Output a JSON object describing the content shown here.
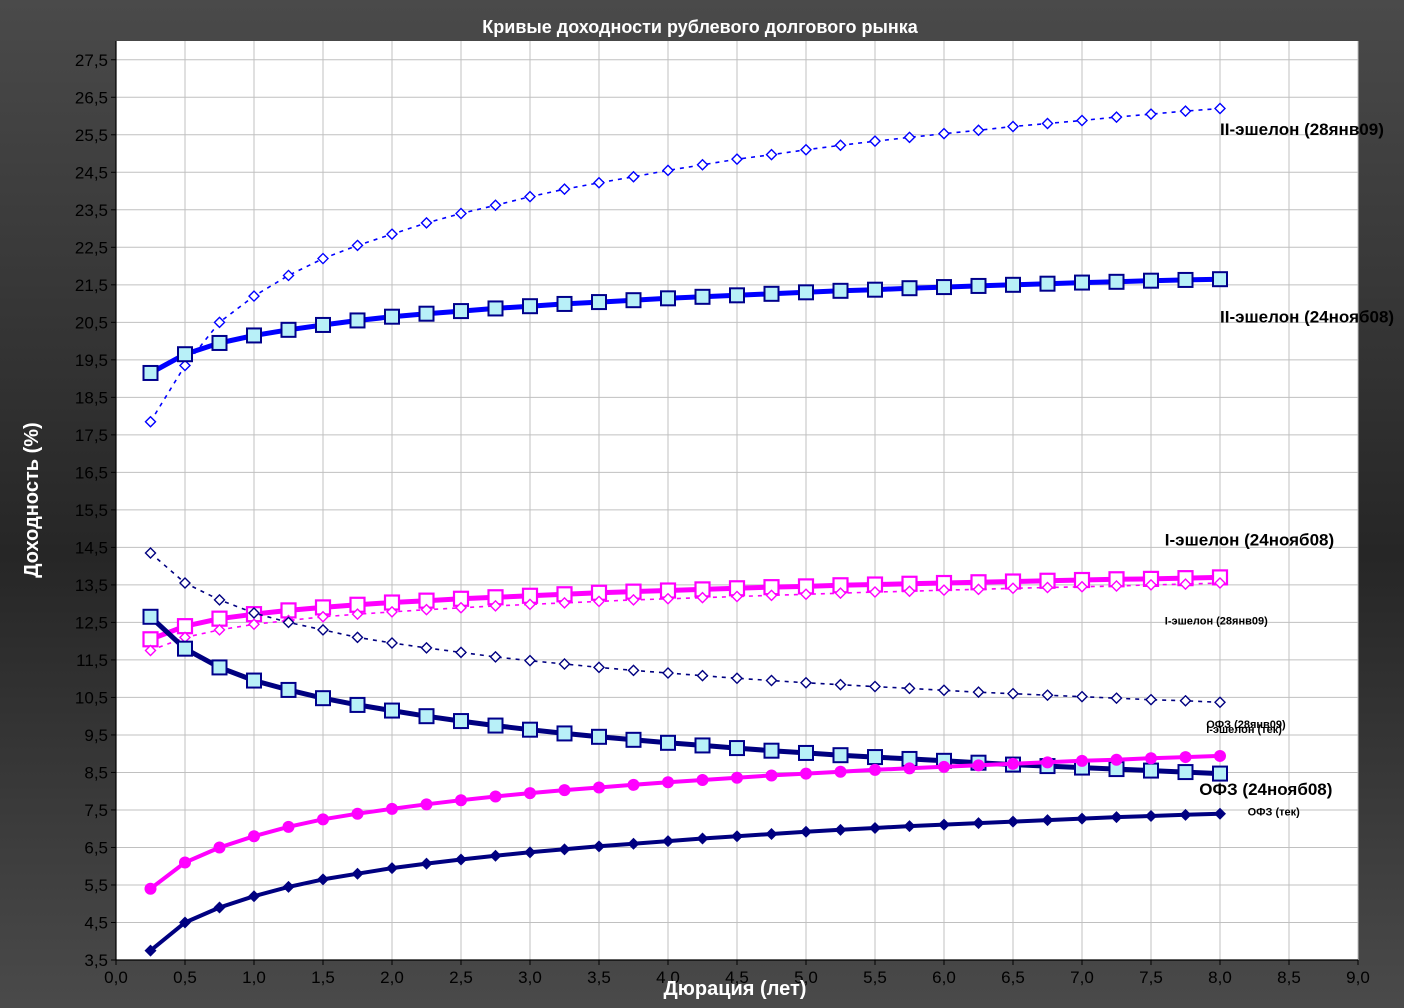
{
  "chart_data": {
    "type": "line",
    "title": "Кривые доходности рублевого долгового рынка",
    "xlabel": "Дюрация (лет)",
    "ylabel": "Доходность (%)",
    "xlim": [
      0,
      9
    ],
    "ylim": [
      3.5,
      28
    ],
    "x_ticks": [
      "0,0",
      "0,5",
      "1,0",
      "1,5",
      "2,0",
      "2,5",
      "3,0",
      "3,5",
      "4,0",
      "4,5",
      "5,0",
      "5,5",
      "6,0",
      "6,5",
      "7,0",
      "7,5",
      "8,0",
      "8,5",
      "9,0"
    ],
    "y_ticks": [
      "3,5",
      "4,5",
      "5,5",
      "6,5",
      "7,5",
      "8,5",
      "9,5",
      "10,5",
      "11,5",
      "12,5",
      "13,5",
      "14,5",
      "15,5",
      "16,5",
      "17,5",
      "18,5",
      "19,5",
      "20,5",
      "21,5",
      "22,5",
      "23,5",
      "24,5",
      "25,5",
      "26,5",
      "27,5"
    ],
    "grid": true,
    "x": [
      0.25,
      0.5,
      0.75,
      1.0,
      1.25,
      1.5,
      1.75,
      2.0,
      2.25,
      2.5,
      2.75,
      3.0,
      3.25,
      3.5,
      3.75,
      4.0,
      4.25,
      4.5,
      4.75,
      5.0,
      5.25,
      5.5,
      5.75,
      6.0,
      6.25,
      6.5,
      6.75,
      7.0,
      7.25,
      7.5,
      7.75,
      8.0
    ],
    "series": [
      {
        "name": "II-эшелон (28янв09)",
        "color": "#0000ff",
        "style": "dotted",
        "marker": "open-diamond",
        "values": [
          17.85,
          19.35,
          20.5,
          21.2,
          21.75,
          22.2,
          22.55,
          22.85,
          23.15,
          23.4,
          23.62,
          23.85,
          24.05,
          24.22,
          24.38,
          24.55,
          24.7,
          24.85,
          24.97,
          25.1,
          25.22,
          25.33,
          25.43,
          25.53,
          25.62,
          25.72,
          25.8,
          25.88,
          25.97,
          26.05,
          26.13,
          26.2
        ]
      },
      {
        "name": "II-эшелон (24нояб08)",
        "color": "#0000ff",
        "style": "solid",
        "marker": "open-square",
        "values": [
          19.15,
          19.65,
          19.95,
          20.15,
          20.3,
          20.43,
          20.55,
          20.65,
          20.73,
          20.8,
          20.87,
          20.93,
          20.99,
          21.04,
          21.09,
          21.14,
          21.18,
          21.22,
          21.26,
          21.3,
          21.34,
          21.37,
          21.41,
          21.44,
          21.47,
          21.5,
          21.53,
          21.56,
          21.58,
          21.61,
          21.63,
          21.65
        ]
      },
      {
        "name": "I-эшелон (24нояб08)",
        "color": "#ff00ff",
        "style": "solid",
        "marker": "open-square",
        "values": [
          12.05,
          12.4,
          12.6,
          12.72,
          12.82,
          12.9,
          12.97,
          13.03,
          13.08,
          13.13,
          13.17,
          13.21,
          13.25,
          13.29,
          13.32,
          13.35,
          13.38,
          13.41,
          13.44,
          13.46,
          13.49,
          13.51,
          13.53,
          13.55,
          13.57,
          13.59,
          13.61,
          13.63,
          13.65,
          13.66,
          13.68,
          13.7
        ]
      },
      {
        "name": "I-эшелон (28янв09)",
        "color": "#ff00ff",
        "style": "dotted",
        "marker": "open-diamond",
        "values": [
          11.75,
          12.1,
          12.3,
          12.45,
          12.55,
          12.65,
          12.72,
          12.78,
          12.84,
          12.89,
          12.94,
          12.98,
          13.02,
          13.06,
          13.1,
          13.13,
          13.16,
          13.19,
          13.22,
          13.25,
          13.28,
          13.31,
          13.33,
          13.36,
          13.38,
          13.41,
          13.43,
          13.45,
          13.47,
          13.5,
          13.52,
          13.55
        ]
      },
      {
        "name": "ОФЗ (28янв09)",
        "color": "#000080",
        "style": "dotted",
        "marker": "open-diamond",
        "values": [
          14.35,
          13.55,
          13.1,
          12.75,
          12.5,
          12.3,
          12.1,
          11.95,
          11.82,
          11.7,
          11.58,
          11.48,
          11.39,
          11.3,
          11.22,
          11.15,
          11.08,
          11.01,
          10.95,
          10.89,
          10.84,
          10.79,
          10.74,
          10.69,
          10.64,
          10.6,
          10.56,
          10.52,
          10.48,
          10.44,
          10.41,
          10.37
        ]
      },
      {
        "name": "ОФЗ (24нояб08)",
        "color": "#000080",
        "style": "solid",
        "marker": "open-square",
        "values": [
          12.65,
          11.8,
          11.3,
          10.95,
          10.7,
          10.48,
          10.3,
          10.15,
          10.0,
          9.87,
          9.75,
          9.64,
          9.54,
          9.45,
          9.37,
          9.29,
          9.22,
          9.15,
          9.08,
          9.02,
          8.96,
          8.91,
          8.86,
          8.81,
          8.76,
          8.71,
          8.67,
          8.63,
          8.59,
          8.55,
          8.51,
          8.47
        ]
      },
      {
        "name": "I-эшелон (тек)",
        "color": "#ff00ff",
        "style": "solid",
        "marker": "filled-circle",
        "values": [
          5.4,
          6.1,
          6.5,
          6.8,
          7.05,
          7.25,
          7.4,
          7.53,
          7.65,
          7.76,
          7.86,
          7.95,
          8.03,
          8.1,
          8.17,
          8.24,
          8.3,
          8.36,
          8.42,
          8.47,
          8.52,
          8.57,
          8.61,
          8.65,
          8.69,
          8.73,
          8.77,
          8.81,
          8.84,
          8.88,
          8.91,
          8.94
        ]
      },
      {
        "name": "ОФЗ (тек)",
        "color": "#000080",
        "style": "solid",
        "marker": "filled-diamond",
        "values": [
          3.75,
          4.5,
          4.9,
          5.2,
          5.45,
          5.65,
          5.8,
          5.95,
          6.07,
          6.18,
          6.28,
          6.37,
          6.45,
          6.53,
          6.6,
          6.67,
          6.74,
          6.8,
          6.86,
          6.92,
          6.97,
          7.02,
          7.07,
          7.11,
          7.15,
          7.19,
          7.23,
          7.27,
          7.31,
          7.34,
          7.37,
          7.4
        ]
      }
    ],
    "annotations": [
      {
        "text": "II-эшелон (28янв09)",
        "x": 8.0,
        "y": 25.5,
        "size": "large"
      },
      {
        "text": "II-эшелон (24нояб08)",
        "x": 8.0,
        "y": 20.5,
        "size": "large"
      },
      {
        "text": "I-эшелон (24нояб08)",
        "x": 7.6,
        "y": 14.55,
        "size": "large"
      },
      {
        "text": "I-эшелон (28янв09)",
        "x": 7.6,
        "y": 12.45,
        "size": "small"
      },
      {
        "text": "ОФЗ (28янв09)",
        "x": 7.9,
        "y": 9.68,
        "size": "small"
      },
      {
        "text": "I-эшелон (тек)",
        "x": 7.9,
        "y": 9.55,
        "size": "small"
      },
      {
        "text": "ОФЗ (24нояб08)",
        "x": 7.85,
        "y": 7.9,
        "size": "large"
      },
      {
        "text": "ОФЗ (тек)",
        "x": 8.2,
        "y": 7.35,
        "size": "small"
      }
    ]
  }
}
